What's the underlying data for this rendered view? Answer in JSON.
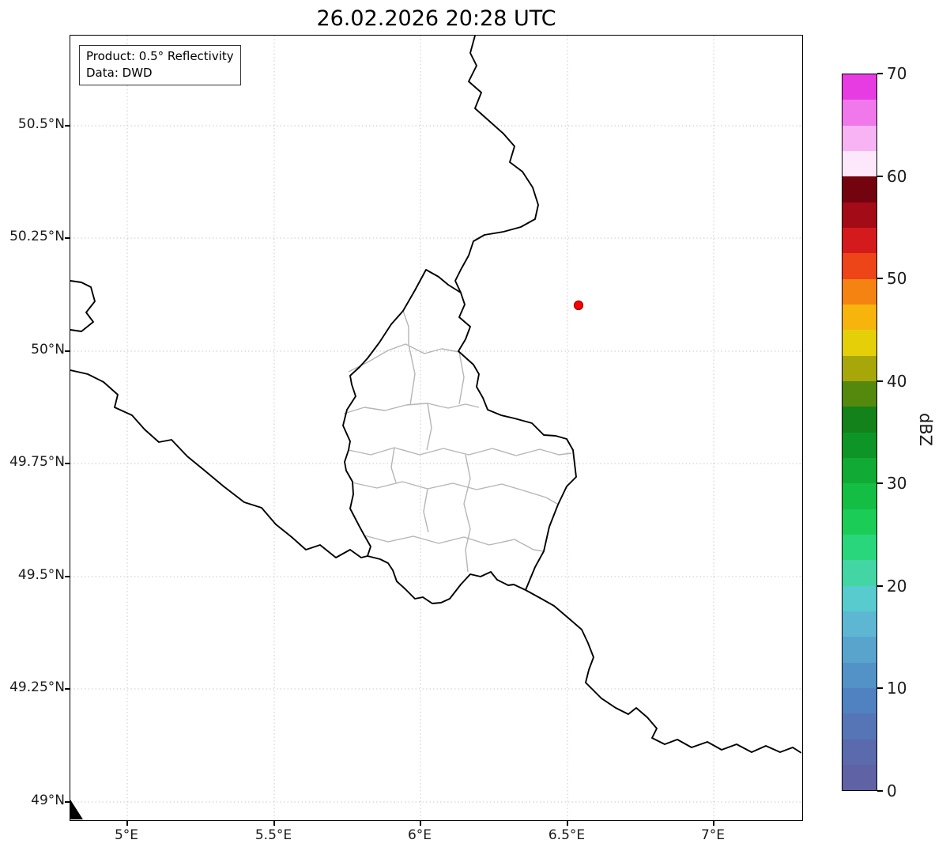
{
  "title": "26.02.2026 20:28 UTC",
  "info_box": {
    "product_line": "Product: 0.5° Reflectivity",
    "data_line": "Data: DWD"
  },
  "axes": {
    "x_tick_labels": [
      "5°E",
      "5.5°E",
      "6°E",
      "6.5°E",
      "7°E"
    ],
    "y_tick_labels": [
      "50.5°N",
      "50.25°N",
      "50°N",
      "49.75°N",
      "49.5°N",
      "49.25°N",
      "49°N"
    ]
  },
  "colorbar": {
    "label": "dBZ",
    "tick_labels": [
      "0",
      "10",
      "20",
      "30",
      "40",
      "50",
      "60",
      "70"
    ],
    "segment_colors_bottom_to_top": [
      "#5f62a4",
      "#5a6aad",
      "#5575b7",
      "#5081c0",
      "#5292c6",
      "#58a4cd",
      "#5db7d3",
      "#57cbcd",
      "#44d5a5",
      "#2ad67b",
      "#1bcd56",
      "#14be44",
      "#10aa34",
      "#0d9627",
      "#13821a",
      "#55890e",
      "#a8a70a",
      "#e5cf08",
      "#f6b40d",
      "#f58312",
      "#ee4518",
      "#d51a1d",
      "#a30b16",
      "#740310",
      "#fce7fb",
      "#f7b3f3",
      "#f078eb",
      "#e83ce3"
    ]
  },
  "marker": {
    "fill": "#ff0000",
    "outline": "#990000"
  },
  "map_colors": {
    "country_border": "#000000",
    "district_border": "#b5b5b5",
    "gridline": "#c9c9c9"
  },
  "chart_data": {
    "type": "map",
    "title": "26.02.2026 20:28 UTC",
    "product": "0.5° Reflectivity",
    "data_source": "DWD",
    "x_axis": {
      "unit": "°E",
      "tick_values": [
        5,
        5.5,
        6,
        6.5,
        7
      ],
      "range": [
        4.81,
        7.31
      ]
    },
    "y_axis": {
      "unit": "°N",
      "tick_values": [
        50.5,
        50.25,
        50,
        49.75,
        49.5,
        49.25,
        49
      ],
      "range": [
        48.96,
        50.7
      ]
    },
    "colorbar": {
      "label": "dBZ",
      "ticks": [
        0,
        10,
        20,
        30,
        40,
        50,
        60,
        70
      ],
      "range": [
        0,
        70
      ]
    },
    "markers": [
      {
        "name": "radar-site",
        "approx_lon": 6.54,
        "approx_lat": 50.1,
        "color": "red"
      }
    ],
    "grid": true,
    "legend_position": "right-colorbar"
  }
}
